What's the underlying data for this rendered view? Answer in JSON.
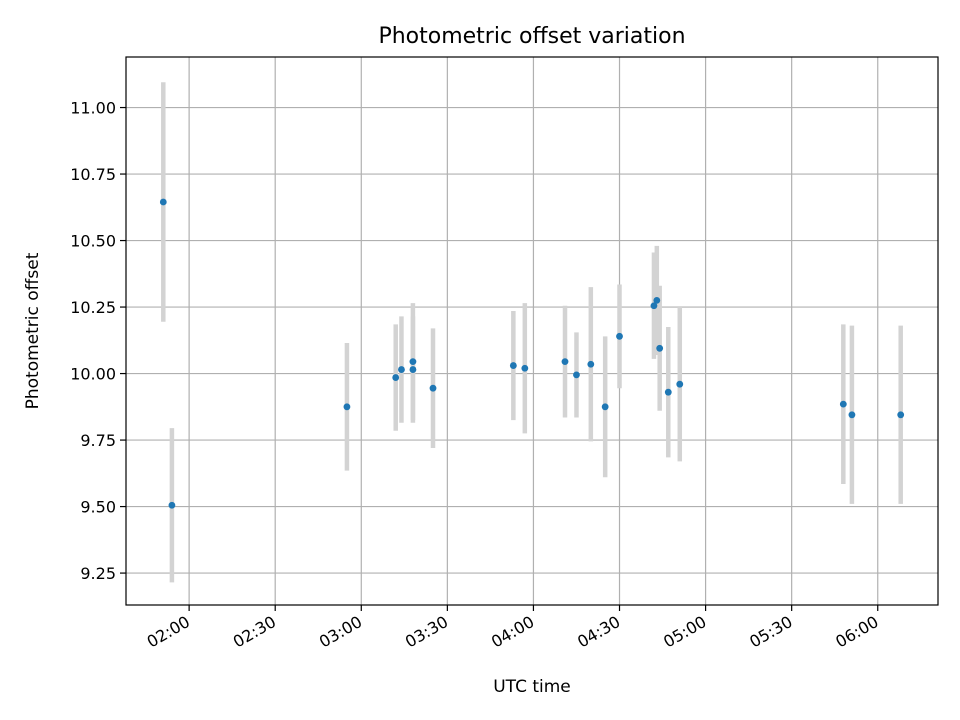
{
  "chart_data": {
    "type": "scatter",
    "title": "Photometric offset variation",
    "xlabel": "UTC time",
    "ylabel": "Photometric offset",
    "xlim": [
      "01:38",
      "06:21"
    ],
    "ylim": [
      9.13,
      11.19
    ],
    "grid": true,
    "x_ticks": [
      "02:00",
      "02:30",
      "03:00",
      "03:30",
      "04:00",
      "04:30",
      "05:00",
      "05:30",
      "06:00"
    ],
    "y_ticks": [
      "9.25",
      "9.50",
      "9.75",
      "10.00",
      "10.25",
      "10.50",
      "10.75",
      "11.00"
    ],
    "colors": {
      "marker": "#1f77b4",
      "errorbar": "#d3d3d3",
      "grid": "#b0b0b0"
    },
    "points": [
      {
        "x": "01:51",
        "y": 10.645,
        "err": 0.45
      },
      {
        "x": "01:54",
        "y": 9.505,
        "err": 0.29
      },
      {
        "x": "02:55",
        "y": 9.875,
        "err": 0.24
      },
      {
        "x": "03:12",
        "y": 9.985,
        "err": 0.2
      },
      {
        "x": "03:14",
        "y": 10.015,
        "err": 0.2
      },
      {
        "x": "03:18",
        "y": 10.015,
        "err": 0.2
      },
      {
        "x": "03:18",
        "y": 10.045,
        "err": 0.22
      },
      {
        "x": "03:25",
        "y": 9.945,
        "err": 0.225
      },
      {
        "x": "03:53",
        "y": 10.03,
        "err": 0.205
      },
      {
        "x": "03:57",
        "y": 10.02,
        "err": 0.245
      },
      {
        "x": "04:11",
        "y": 10.045,
        "err": 0.21
      },
      {
        "x": "04:15",
        "y": 9.995,
        "err": 0.16
      },
      {
        "x": "04:20",
        "y": 10.035,
        "err": 0.29
      },
      {
        "x": "04:25",
        "y": 9.875,
        "err": 0.265
      },
      {
        "x": "04:30",
        "y": 10.14,
        "err": 0.195
      },
      {
        "x": "04:42",
        "y": 10.255,
        "err": 0.2
      },
      {
        "x": "04:43",
        "y": 10.275,
        "err": 0.205
      },
      {
        "x": "04:44",
        "y": 10.095,
        "err": 0.235
      },
      {
        "x": "04:47",
        "y": 9.93,
        "err": 0.245
      },
      {
        "x": "04:51",
        "y": 9.96,
        "err": 0.29
      },
      {
        "x": "05:48",
        "y": 9.885,
        "err": 0.3
      },
      {
        "x": "05:51",
        "y": 9.845,
        "err": 0.335
      },
      {
        "x": "06:08",
        "y": 9.845,
        "err": 0.335
      }
    ]
  }
}
